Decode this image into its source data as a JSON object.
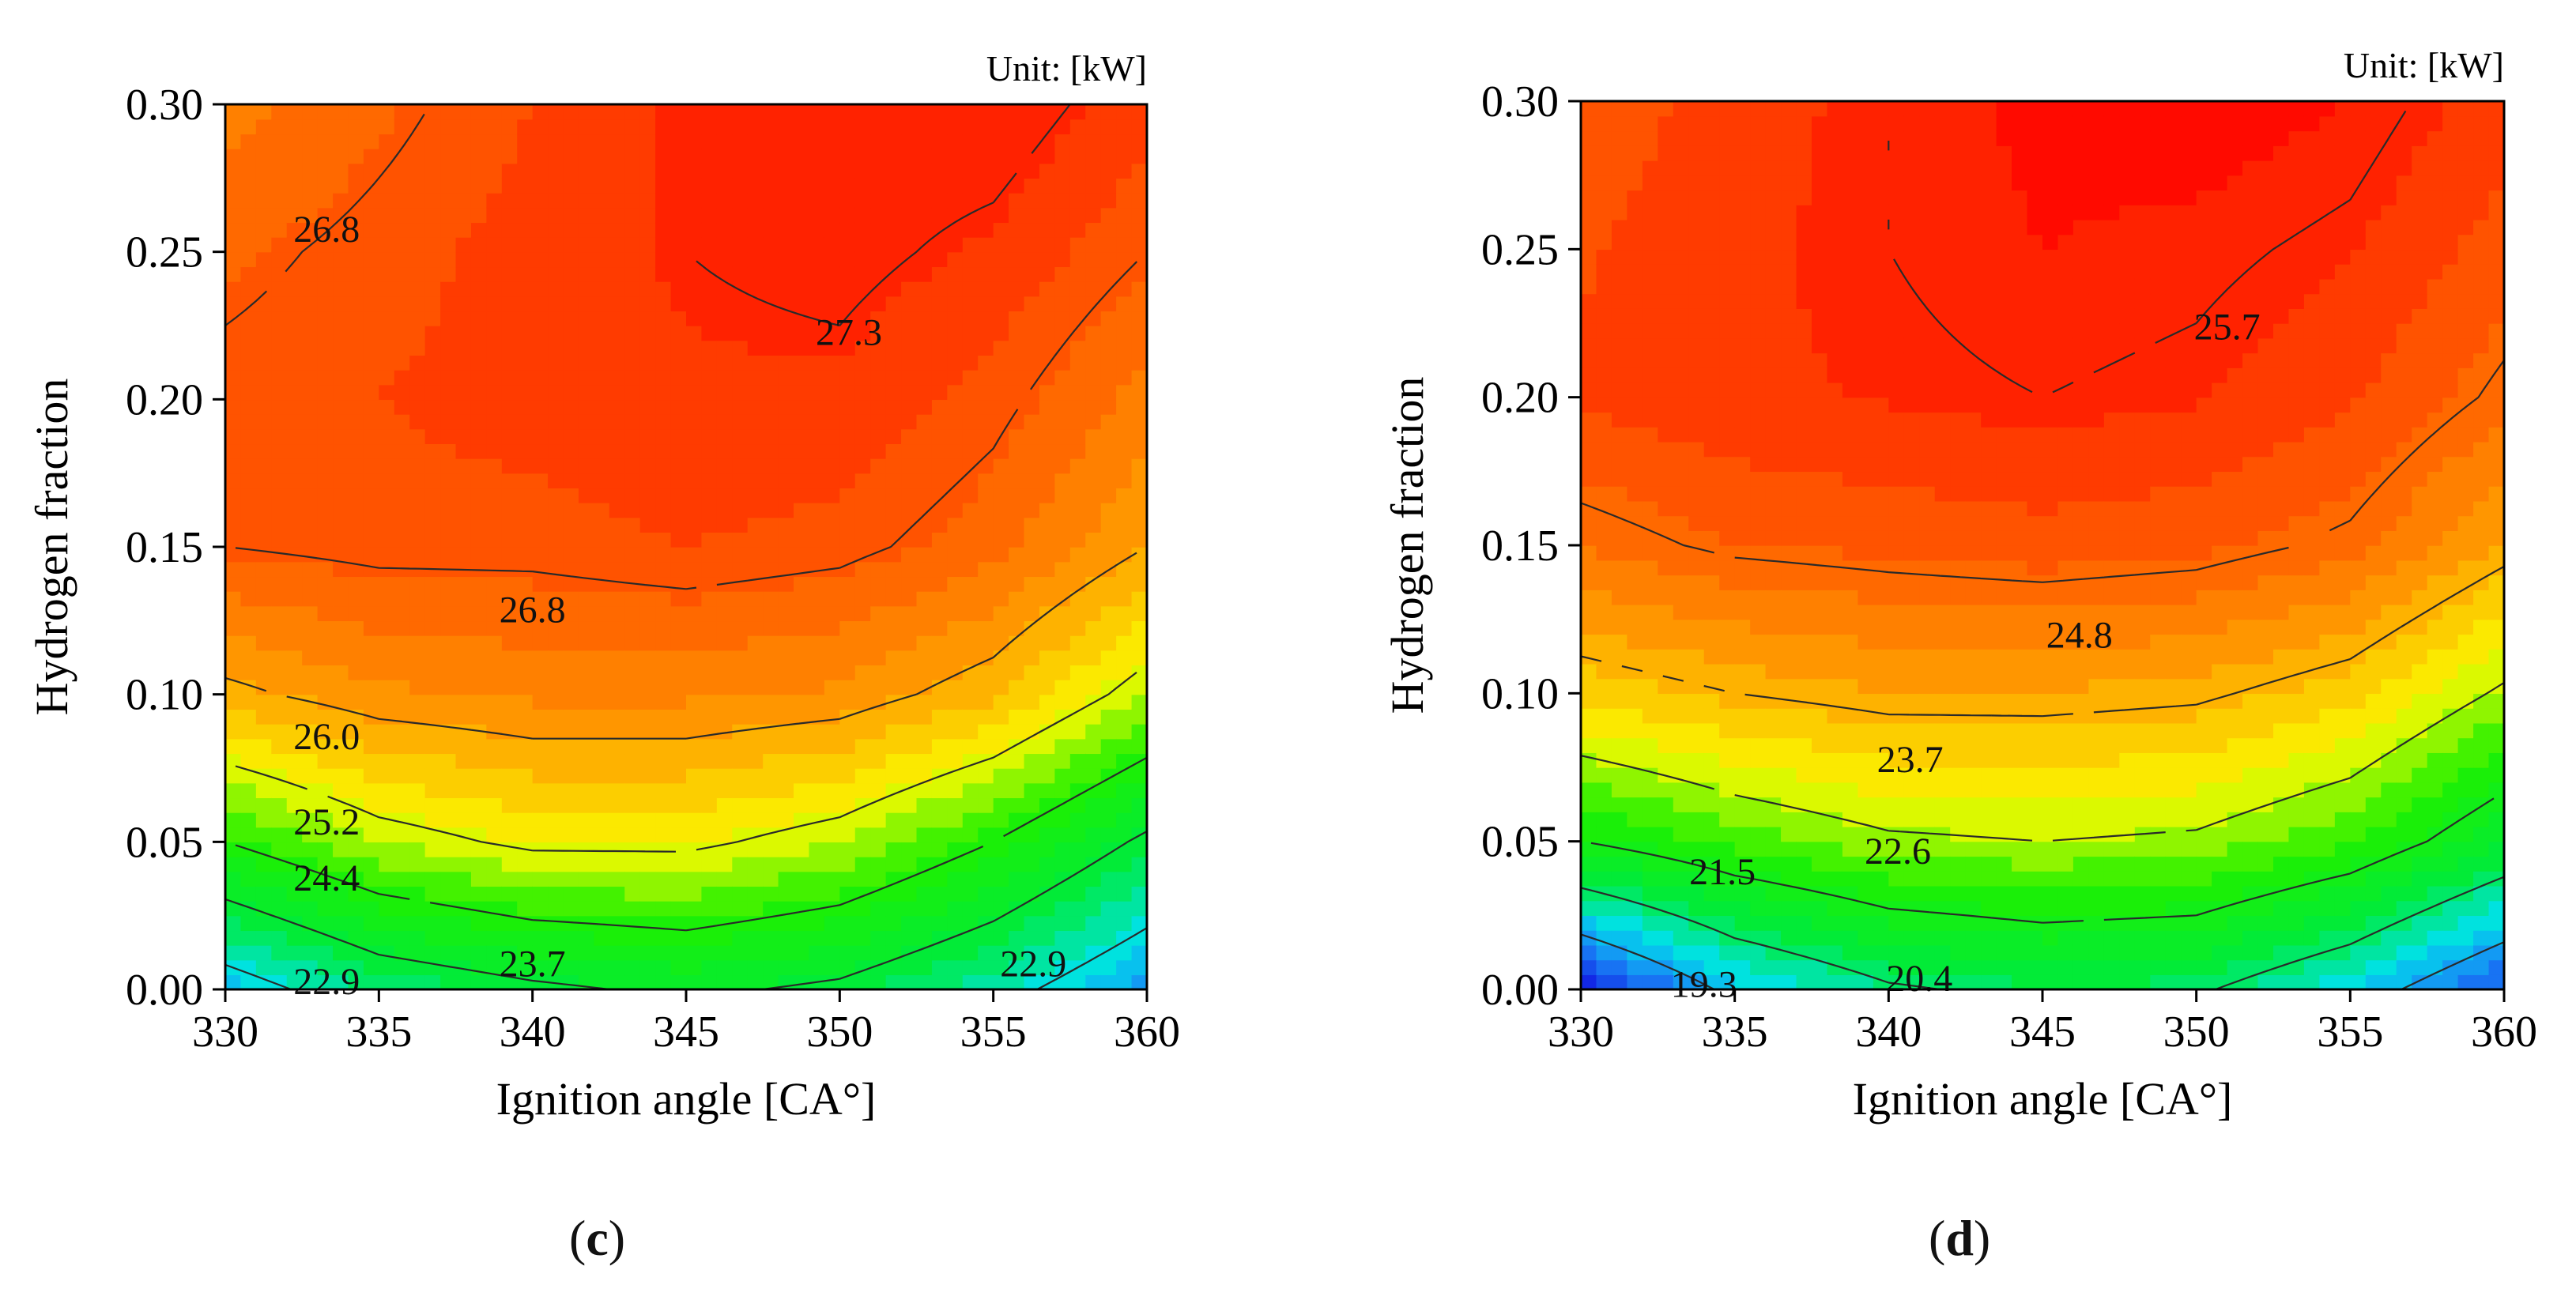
{
  "chart_data": [
    {
      "type": "contour",
      "panel_label": "c",
      "unit_label": "Unit: [kW]",
      "xlabel": "Ignition angle [CA°]",
      "ylabel": "Hydrogen fraction",
      "xlim": [
        330,
        360
      ],
      "ylim": [
        0.0,
        0.3
      ],
      "xticks": [
        "330",
        "335",
        "340",
        "345",
        "350",
        "355",
        "360"
      ],
      "yticks": [
        "0.00",
        "0.05",
        "0.10",
        "0.15",
        "0.20",
        "0.25",
        "0.30"
      ],
      "x": [
        330,
        335,
        340,
        345,
        350,
        355,
        360
      ],
      "y": [
        0.0,
        0.05,
        0.1,
        0.15,
        0.2,
        0.25,
        0.3
      ],
      "z": [
        [
          22.6,
          23.3,
          23.6,
          23.8,
          23.6,
          23.1,
          22.4
        ],
        [
          24.4,
          25.0,
          25.3,
          25.3,
          25.0,
          24.4,
          23.6
        ],
        [
          25.9,
          26.2,
          26.3,
          26.3,
          26.2,
          25.8,
          25.0
        ],
        [
          26.8,
          26.9,
          26.9,
          27.0,
          26.9,
          26.6,
          26.0
        ],
        [
          26.9,
          27.0,
          27.1,
          27.2,
          27.2,
          26.9,
          26.4
        ],
        [
          26.7,
          26.9,
          27.1,
          27.3,
          27.4,
          27.2,
          26.8
        ],
        [
          26.4,
          26.7,
          27.0,
          27.3,
          27.5,
          27.5,
          27.1
        ]
      ],
      "zrange": [
        21.5,
        27.5
      ],
      "contour_labels": [
        {
          "text": "26.8",
          "x": 333.3,
          "y": 0.258
        },
        {
          "text": "27.3",
          "x": 350.3,
          "y": 0.223
        },
        {
          "text": "26.8",
          "x": 340.0,
          "y": 0.129
        },
        {
          "text": "26.0",
          "x": 333.3,
          "y": 0.086
        },
        {
          "text": "25.2",
          "x": 333.3,
          "y": 0.057
        },
        {
          "text": "24.4",
          "x": 333.3,
          "y": 0.038
        },
        {
          "text": "23.7",
          "x": 340.0,
          "y": 0.009
        },
        {
          "text": "22.9",
          "x": 333.3,
          "y": 0.003
        },
        {
          "text": "22.9",
          "x": 356.3,
          "y": 0.009
        }
      ]
    },
    {
      "type": "contour",
      "panel_label": "d",
      "unit_label": "Unit: [kW]",
      "xlabel": "Ignition angle [CA°]",
      "ylabel": "Hydrogen fraction",
      "xlim": [
        330,
        360
      ],
      "ylim": [
        0.0,
        0.3
      ],
      "xticks": [
        "330",
        "335",
        "340",
        "345",
        "350",
        "355",
        "360"
      ],
      "yticks": [
        "0.00",
        "0.05",
        "0.10",
        "0.15",
        "0.20",
        "0.25",
        "0.30"
      ],
      "x": [
        330,
        335,
        340,
        345,
        350,
        355,
        360
      ],
      "y": [
        0.0,
        0.05,
        0.1,
        0.15,
        0.2,
        0.25,
        0.3
      ],
      "z": [
        [
          18.0,
          19.5,
          20.3,
          20.6,
          20.5,
          19.7,
          18.5
        ],
        [
          21.5,
          22.1,
          22.5,
          22.6,
          22.5,
          22.0,
          21.0
        ],
        [
          23.4,
          23.7,
          23.9,
          23.9,
          23.8,
          23.4,
          22.5
        ],
        [
          24.6,
          24.9,
          25.0,
          25.1,
          25.0,
          24.7,
          23.9
        ],
        [
          25.3,
          25.5,
          25.6,
          25.7,
          25.6,
          25.3,
          24.7
        ],
        [
          25.2,
          25.5,
          25.7,
          25.9,
          25.8,
          25.6,
          25.1
        ],
        [
          25.0,
          25.4,
          25.7,
          26.0,
          26.1,
          25.9,
          25.4
        ]
      ],
      "zrange": [
        18.0,
        25.9
      ],
      "contour_labels": [
        {
          "text": "25.7",
          "x": 351.0,
          "y": 0.224
        },
        {
          "text": "24.8",
          "x": 346.2,
          "y": 0.12
        },
        {
          "text": "23.7",
          "x": 340.7,
          "y": 0.078
        },
        {
          "text": "22.6",
          "x": 340.3,
          "y": 0.047
        },
        {
          "text": "21.5",
          "x": 334.6,
          "y": 0.04
        },
        {
          "text": "20.4",
          "x": 341.0,
          "y": 0.004
        },
        {
          "text": "19.3",
          "x": 334.0,
          "y": 0.002
        }
      ]
    }
  ]
}
